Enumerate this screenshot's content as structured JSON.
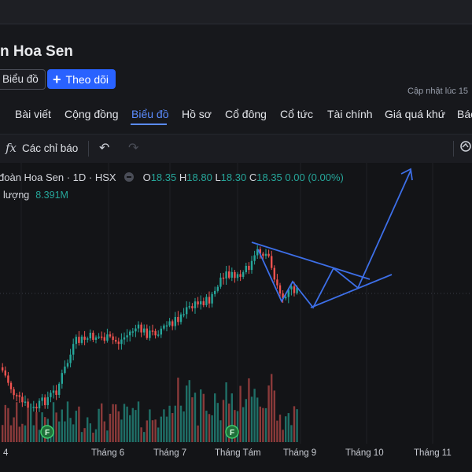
{
  "page": {
    "title": "n Hoa Sen",
    "chart_button": "Biểu đồ",
    "follow_button": "Theo dõi",
    "updated_text": "Cập nhật lúc  15"
  },
  "tabs": [
    {
      "label": "Bài viết"
    },
    {
      "label": "Cộng đồng"
    },
    {
      "label": "Biểu đồ"
    },
    {
      "label": "Hồ sơ"
    },
    {
      "label": "Cổ đông"
    },
    {
      "label": "Cổ tức"
    },
    {
      "label": "Tài chính"
    },
    {
      "label": "Giá quá khứ"
    },
    {
      "label": "Báo"
    }
  ],
  "toolbar": {
    "fx_glyph": "fx",
    "indicators_label": "Các chỉ báo",
    "undo_glyph": "↶",
    "redo_glyph": "↷",
    "snapshot_icon": "camera-icon"
  },
  "legend": {
    "symbol": "đoàn Hoa Sen · 1D · HSX",
    "o_label": "O",
    "o_value": "18.35",
    "h_label": "H",
    "h_value": "18.80",
    "l_label": "L",
    "l_value": "18.30",
    "c_label": "C",
    "c_value": "18.35",
    "change": "0.00 (0.00%)",
    "volume_label": "lượng",
    "volume_value": "8.391M"
  },
  "xaxis": [
    "4",
    "Tháng 6",
    "Tháng 7",
    "Tháng Tám",
    "Tháng 9",
    "Tháng 10",
    "Tháng 11"
  ],
  "markers": [
    "F",
    "F"
  ],
  "colors": {
    "up": "#26a69a",
    "down": "#ef5350",
    "drawing": "#3d6fe8",
    "accent": "#2962ff"
  }
}
